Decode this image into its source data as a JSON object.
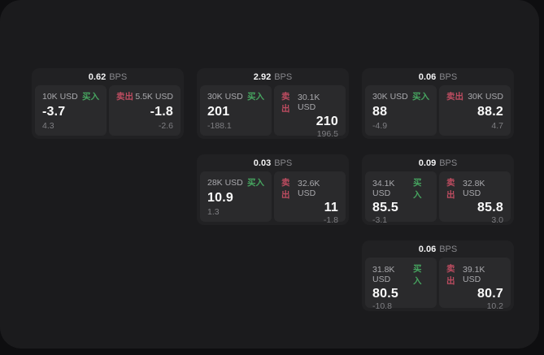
{
  "labels": {
    "bps_unit": "BPS",
    "buy": "买入",
    "sell": "卖出"
  },
  "colors": {
    "buy": "#46a35f",
    "sell": "#bd4c60"
  },
  "cards": [
    {
      "col": 1,
      "row": 1,
      "bps": "0.62",
      "buy": {
        "amount": "10K USD",
        "value": "-3.7",
        "delta": "4.3"
      },
      "sell": {
        "amount": "5.5K USD",
        "value": "-1.8",
        "delta": "-2.6"
      }
    },
    {
      "col": 2,
      "row": 1,
      "bps": "2.92",
      "buy": {
        "amount": "30K USD",
        "value": "201",
        "delta": "-188.1"
      },
      "sell": {
        "amount": "30.1K USD",
        "value": "210",
        "delta": "196.5"
      }
    },
    {
      "col": 3,
      "row": 1,
      "bps": "0.06",
      "buy": {
        "amount": "30K USD",
        "value": "88",
        "delta": "-4.9"
      },
      "sell": {
        "amount": "30K USD",
        "value": "88.2",
        "delta": "4.7"
      }
    },
    {
      "col": 2,
      "row": 2,
      "bps": "0.03",
      "buy": {
        "amount": "28K USD",
        "value": "10.9",
        "delta": "1.3"
      },
      "sell": {
        "amount": "32.6K USD",
        "value": "11",
        "delta": "-1.8"
      }
    },
    {
      "col": 3,
      "row": 2,
      "bps": "0.09",
      "buy": {
        "amount": "34.1K USD",
        "value": "85.5",
        "delta": "-3.1"
      },
      "sell": {
        "amount": "32.8K USD",
        "value": "85.8",
        "delta": "3.0"
      }
    },
    {
      "col": 3,
      "row": 3,
      "bps": "0.06",
      "buy": {
        "amount": "31.8K USD",
        "value": "80.5",
        "delta": "-10.8"
      },
      "sell": {
        "amount": "39.1K USD",
        "value": "80.7",
        "delta": "10.2"
      }
    }
  ]
}
